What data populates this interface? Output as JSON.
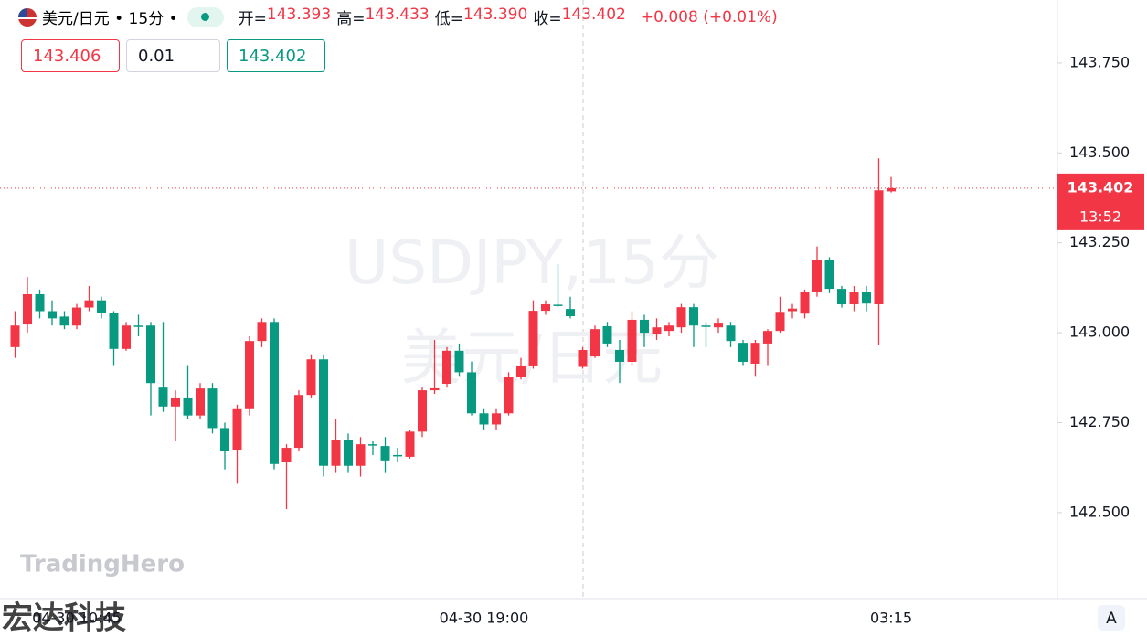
{
  "header": {
    "symbol_line": "美元/日元 • 15分 •",
    "ohlc": [
      {
        "label": "开=",
        "value": "143.393"
      },
      {
        "label": "高=",
        "value": "143.433"
      },
      {
        "label": "低=",
        "value": "143.390"
      },
      {
        "label": "收=",
        "value": "143.402"
      }
    ],
    "change": "+0.008 (+0.01%)",
    "bid": "143.406",
    "quantity": "0.01",
    "ask": "143.402"
  },
  "watermark": {
    "line1": "USDJPY,15分",
    "line2": "美元/日元"
  },
  "brand": {
    "name": "TradingHero",
    "company": "宏达科技",
    "button": "A"
  },
  "chart_data": {
    "type": "candlestick",
    "up_color": "#f23645",
    "down_color": "#089981",
    "ylim": [
      142.261,
      143.925
    ],
    "yticks": [
      {
        "value": 142.5,
        "label": "142.500"
      },
      {
        "value": 142.75,
        "label": "142.750"
      },
      {
        "value": 143.0,
        "label": "143.000"
      },
      {
        "value": 143.25,
        "label": "143.250"
      },
      {
        "value": 143.5,
        "label": "143.500"
      },
      {
        "value": 143.75,
        "label": "143.750"
      }
    ],
    "last_price": {
      "value": 143.402,
      "label": "143.402"
    },
    "countdown": "13:52",
    "categories": [
      null,
      null,
      null,
      null,
      null,
      "04-30 10:45",
      null,
      null,
      null,
      null,
      null,
      null,
      null,
      null,
      null,
      null,
      null,
      null,
      null,
      null,
      null,
      null,
      null,
      null,
      null,
      null,
      null,
      null,
      null,
      null,
      null,
      null,
      null,
      null,
      null,
      null,
      null,
      null,
      "04-30 19:00",
      null,
      null,
      null,
      null,
      null,
      null,
      null,
      null,
      null,
      null,
      null,
      null,
      null,
      null,
      null,
      null,
      null,
      null,
      null,
      null,
      null,
      null,
      null,
      null,
      null,
      null,
      null,
      null,
      null,
      null,
      null,
      null,
      "03:15"
    ],
    "ohlc": [
      [
        142.96,
        143.06,
        142.93,
        143.02
      ],
      [
        143.023,
        143.155,
        143.0,
        143.107
      ],
      [
        143.107,
        143.12,
        143.04,
        143.06
      ],
      [
        143.06,
        143.09,
        143.02,
        143.04
      ],
      [
        143.045,
        143.06,
        143.01,
        143.02
      ],
      [
        143.02,
        143.08,
        143.01,
        143.07
      ],
      [
        143.07,
        143.13,
        143.06,
        143.09
      ],
      [
        143.09,
        143.1,
        143.04,
        143.055
      ],
      [
        143.055,
        143.06,
        142.91,
        142.955
      ],
      [
        142.955,
        143.03,
        142.95,
        143.02
      ],
      [
        143.02,
        143.05,
        142.99,
        143.018
      ],
      [
        143.02,
        143.03,
        142.77,
        142.86
      ],
      [
        142.85,
        143.03,
        142.78,
        142.795
      ],
      [
        142.795,
        142.84,
        142.7,
        142.82
      ],
      [
        142.82,
        142.91,
        142.76,
        142.77
      ],
      [
        142.77,
        142.86,
        142.76,
        142.845
      ],
      [
        142.845,
        142.86,
        142.72,
        142.735
      ],
      [
        142.735,
        142.75,
        142.62,
        142.67
      ],
      [
        142.675,
        142.8,
        142.58,
        142.79
      ],
      [
        142.79,
        142.99,
        142.77,
        142.977
      ],
      [
        142.977,
        143.04,
        142.96,
        143.03
      ],
      [
        143.03,
        143.04,
        142.62,
        142.635
      ],
      [
        142.64,
        142.69,
        142.51,
        142.68
      ],
      [
        142.68,
        142.84,
        142.67,
        142.827
      ],
      [
        142.827,
        142.94,
        142.82,
        142.926
      ],
      [
        142.926,
        142.94,
        142.6,
        142.63
      ],
      [
        142.63,
        142.76,
        142.61,
        142.703
      ],
      [
        142.703,
        142.72,
        142.61,
        142.63
      ],
      [
        142.63,
        142.71,
        142.6,
        142.69
      ],
      [
        142.69,
        142.7,
        142.66,
        142.688
      ],
      [
        142.685,
        142.71,
        142.61,
        142.645
      ],
      [
        142.66,
        142.68,
        142.64,
        142.657
      ],
      [
        142.655,
        142.73,
        142.65,
        142.725
      ],
      [
        142.725,
        142.85,
        142.71,
        142.84
      ],
      [
        142.84,
        142.98,
        142.83,
        142.848
      ],
      [
        142.858,
        142.96,
        142.85,
        142.95
      ],
      [
        142.95,
        142.97,
        142.88,
        142.89
      ],
      [
        142.89,
        142.92,
        142.77,
        142.776
      ],
      [
        142.776,
        142.79,
        142.73,
        142.745
      ],
      [
        142.745,
        142.79,
        142.73,
        142.776
      ],
      [
        142.776,
        142.89,
        142.77,
        142.878
      ],
      [
        142.878,
        142.93,
        142.87,
        142.909
      ],
      [
        142.909,
        143.09,
        142.9,
        143.061
      ],
      [
        143.061,
        143.09,
        143.05,
        143.079
      ],
      [
        143.078,
        143.19,
        143.07,
        143.076
      ],
      [
        143.066,
        143.1,
        143.04,
        143.046
      ],
      [
        142.905,
        142.96,
        142.9,
        142.952
      ],
      [
        142.934,
        143.02,
        142.93,
        143.01
      ],
      [
        143.018,
        143.03,
        142.96,
        142.97
      ],
      [
        142.952,
        142.98,
        142.86,
        142.919
      ],
      [
        142.919,
        143.06,
        142.91,
        143.036
      ],
      [
        143.036,
        143.05,
        142.96,
        143.0
      ],
      [
        142.995,
        143.04,
        142.98,
        143.015
      ],
      [
        143.005,
        143.03,
        142.99,
        143.02
      ],
      [
        143.015,
        143.08,
        143.0,
        143.071
      ],
      [
        143.071,
        143.08,
        142.96,
        143.02
      ],
      [
        143.02,
        143.03,
        142.96,
        143.018
      ],
      [
        143.015,
        143.04,
        143.0,
        143.028
      ],
      [
        143.02,
        143.03,
        142.96,
        142.977
      ],
      [
        142.972,
        142.98,
        142.91,
        142.919
      ],
      [
        142.914,
        142.98,
        142.88,
        142.972
      ],
      [
        142.97,
        143.01,
        142.91,
        143.005
      ],
      [
        143.005,
        143.1,
        143.0,
        143.058
      ],
      [
        143.06,
        143.08,
        143.04,
        143.067
      ],
      [
        143.053,
        143.12,
        143.04,
        143.112
      ],
      [
        143.112,
        143.24,
        143.1,
        143.203
      ],
      [
        143.203,
        143.21,
        143.11,
        143.122
      ],
      [
        143.122,
        143.13,
        143.07,
        143.079
      ],
      [
        143.079,
        143.13,
        143.06,
        143.112
      ],
      [
        143.112,
        143.13,
        143.06,
        143.081
      ],
      [
        143.079,
        143.485,
        142.965,
        143.396
      ],
      [
        143.393,
        143.433,
        143.39,
        143.402
      ]
    ]
  }
}
